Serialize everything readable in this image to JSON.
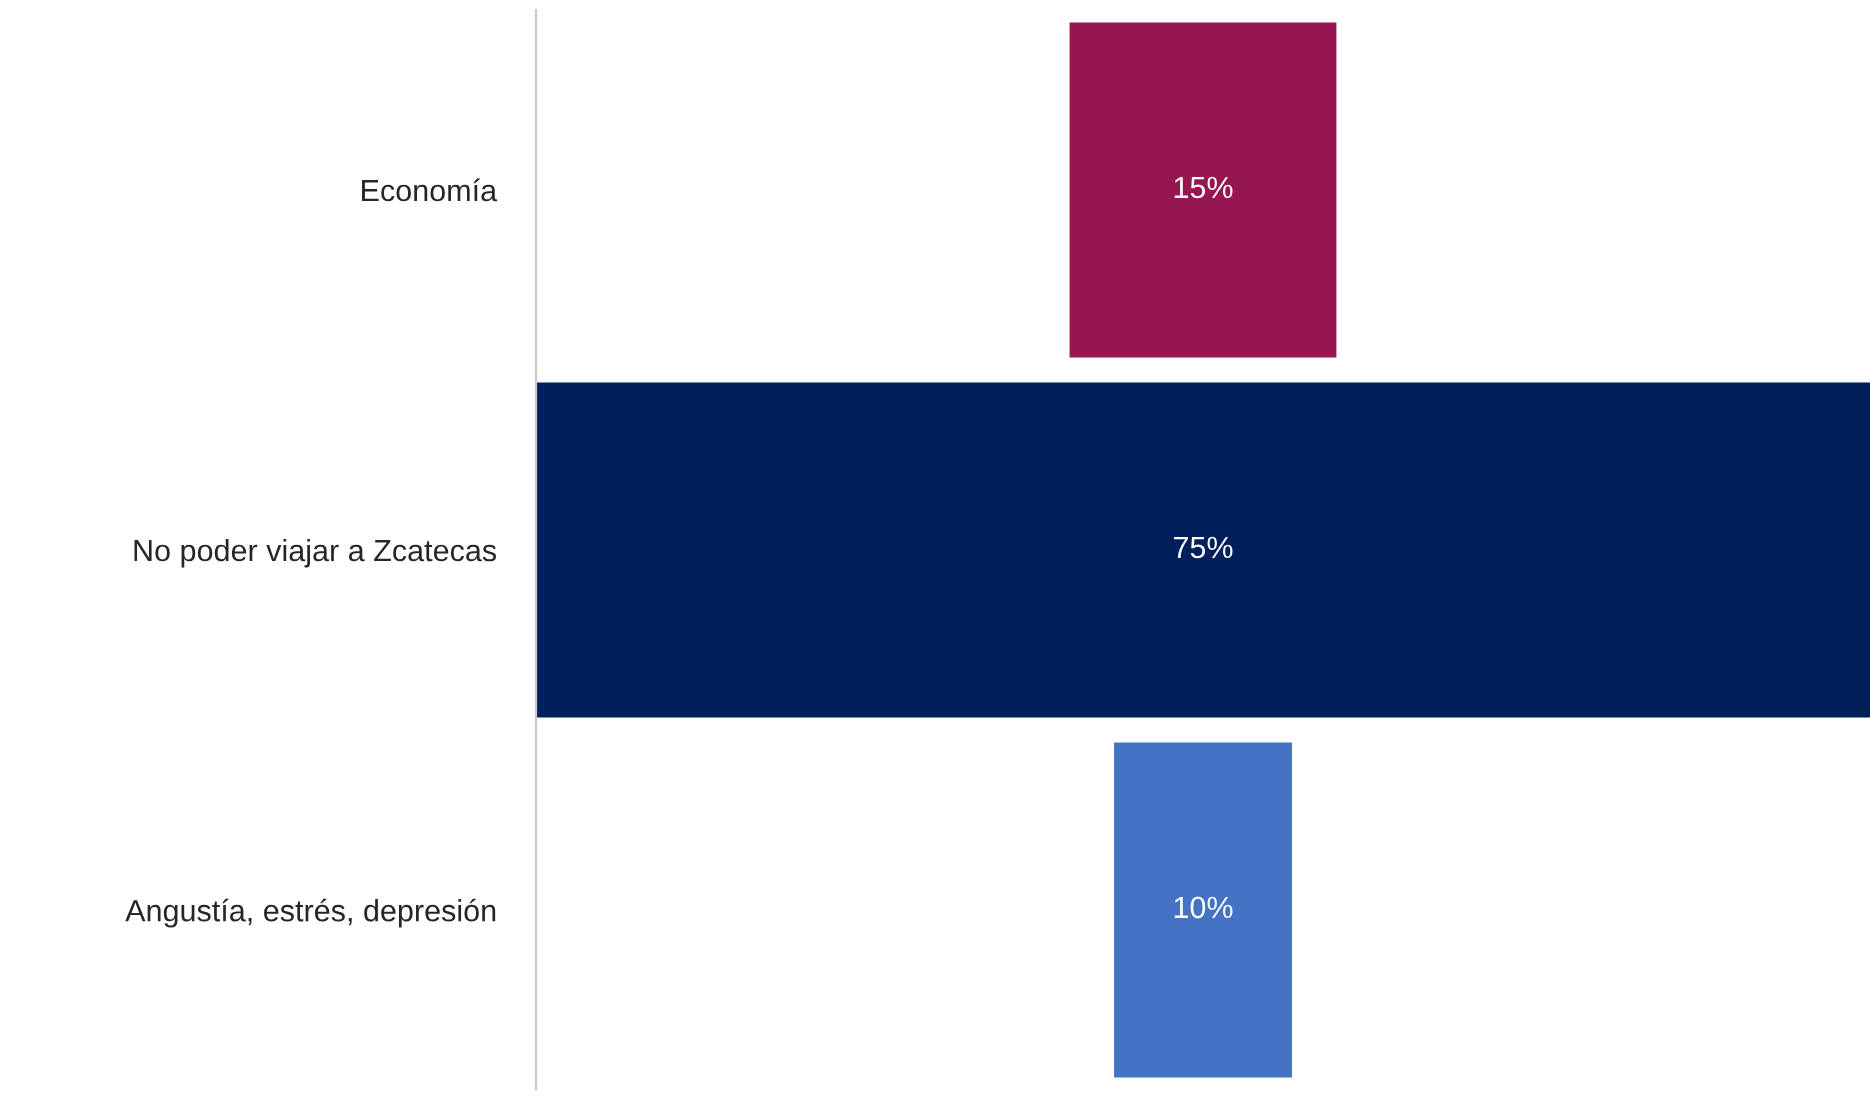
{
  "chart_data": {
    "type": "other",
    "categories": [
      "Economía",
      "No poder viajar a Zcatecas",
      "Angustía, estrés, depresión"
    ],
    "values": [
      15,
      75,
      10
    ],
    "value_labels": [
      "15%",
      "75%",
      "10%"
    ],
    "colors": [
      "#96164f",
      "#001f5b",
      "#4472c4"
    ]
  }
}
